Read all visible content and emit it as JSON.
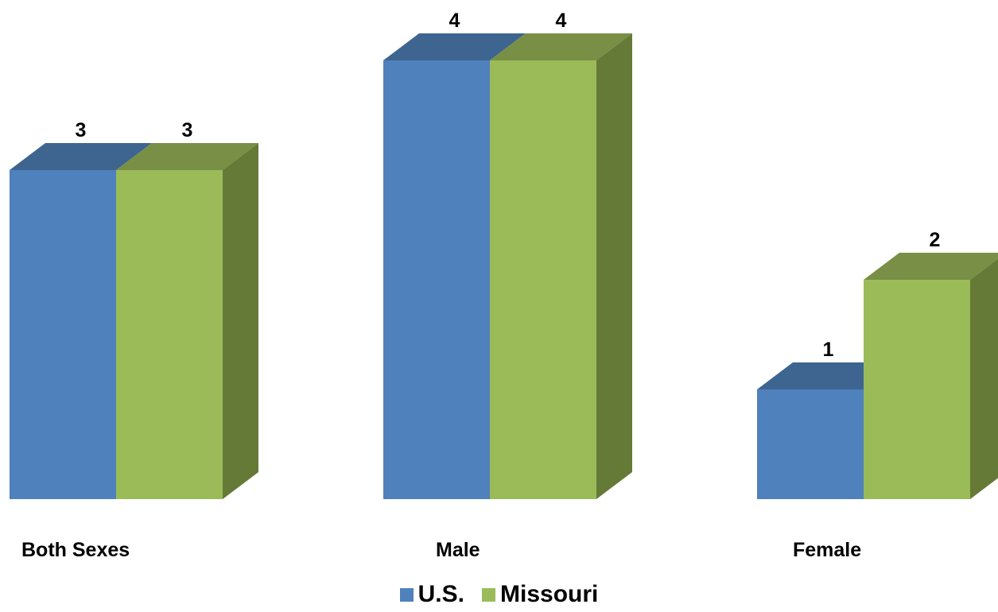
{
  "chart_data": {
    "type": "bar",
    "three_d": true,
    "categories": [
      "Both Sexes",
      "Male",
      "Female"
    ],
    "series": [
      {
        "name": "U.S.",
        "values": [
          3,
          4,
          1
        ],
        "color": "#4f81bd",
        "top_color": "#3d6590"
      },
      {
        "name": "Missouri",
        "values": [
          3,
          4,
          2
        ],
        "color": "#9bbb59",
        "top_color": "#788f45",
        "side_color": "#657a37"
      }
    ],
    "data_labels": true,
    "legend": "bottom",
    "grid": false,
    "axes_visible": false
  }
}
